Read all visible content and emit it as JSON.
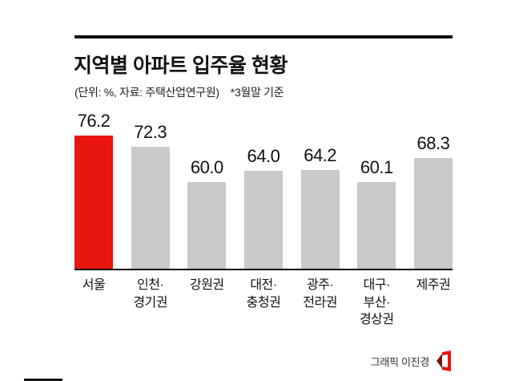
{
  "header": {
    "title": "지역별 아파트 입주율 현황",
    "subtitle_unit": "(단위: %, 자료: 주택산업연구원)",
    "subtitle_note": "*3월말 기준"
  },
  "chart_data": {
    "type": "bar",
    "title": "지역별 아파트 입주율 현황",
    "categories": [
      "서울",
      "인천·경기권",
      "강원권",
      "대전·충청권",
      "광주·전라권",
      "대구·부산·경상권",
      "제주권"
    ],
    "category_lines": [
      [
        "서울"
      ],
      [
        "인천·",
        "경기권"
      ],
      [
        "강원권"
      ],
      [
        "대전·",
        "충청권"
      ],
      [
        "광주·",
        "전라권"
      ],
      [
        "대구·",
        "부산·",
        "경상권"
      ],
      [
        "제주권"
      ]
    ],
    "values": [
      76.2,
      72.3,
      60.0,
      64.0,
      64.2,
      60.1,
      68.3
    ],
    "value_labels": [
      "76.2",
      "72.3",
      "60.0",
      "64.0",
      "64.2",
      "60.1",
      "68.3"
    ],
    "unit": "%",
    "source": "주택산업연구원",
    "note": "*3월말 기준",
    "highlight_index": 0,
    "colors": {
      "highlight": "#e8160c",
      "default": "#c9c9c9"
    },
    "ylim": [
      30,
      85
    ],
    "grid": false,
    "legend": "none"
  },
  "footer": {
    "credit": "그래픽 이진경",
    "logo_color": "#e8160c"
  }
}
